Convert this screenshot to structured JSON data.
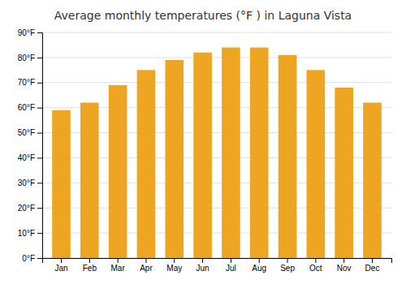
{
  "chart_data": {
    "type": "bar",
    "title": "Average monthly temperatures (°F ) in Laguna Vista",
    "categories": [
      "Jan",
      "Feb",
      "Mar",
      "Apr",
      "May",
      "Jun",
      "Jul",
      "Aug",
      "Sep",
      "Oct",
      "Nov",
      "Dec"
    ],
    "values": [
      59,
      62,
      69,
      75,
      79,
      82,
      84,
      84,
      81,
      75,
      68,
      62
    ],
    "color": "#EEA522",
    "ylim": [
      0,
      90
    ],
    "yticks": [
      {
        "value": 0,
        "label": "0°F"
      },
      {
        "value": 10,
        "label": "10°F"
      },
      {
        "value": 20,
        "label": "20°F"
      },
      {
        "value": 30,
        "label": "30°F"
      },
      {
        "value": 40,
        "label": "40°F"
      },
      {
        "value": 50,
        "label": "50°F"
      },
      {
        "value": 60,
        "label": "60°F"
      },
      {
        "value": 70,
        "label": "70°F"
      },
      {
        "value": 80,
        "label": "80°F"
      },
      {
        "value": 90,
        "label": "90°F"
      }
    ],
    "grid": true
  }
}
